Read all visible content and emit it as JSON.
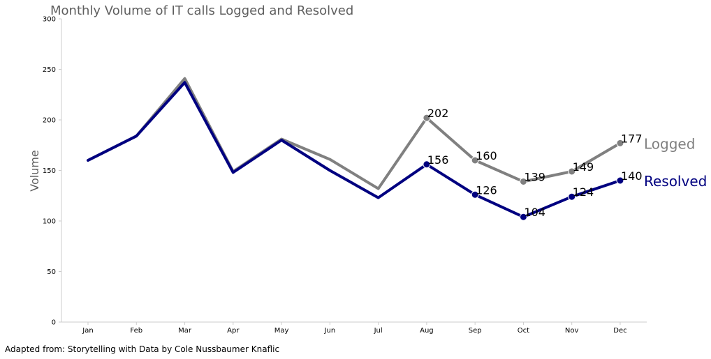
{
  "chart_data": {
    "type": "line",
    "title": "Monthly Volume of IT calls Logged and Resolved",
    "xlabel": "",
    "ylabel": "Volume",
    "categories": [
      "Jan",
      "Feb",
      "Mar",
      "Apr",
      "May",
      "Jun",
      "Jul",
      "Aug",
      "Sep",
      "Oct",
      "Nov",
      "Dec"
    ],
    "ylim": [
      0,
      300
    ],
    "yticks": [
      0,
      50,
      100,
      150,
      200,
      250,
      300
    ],
    "grid": false,
    "legend": "direct labels at right end of lines",
    "series": [
      {
        "name": "Logged",
        "color": "#808080",
        "values": [
          160,
          184,
          241,
          149,
          181,
          161,
          132,
          202,
          160,
          139,
          149,
          177
        ],
        "labeled_points": [
          7,
          8,
          9,
          10,
          11
        ]
      },
      {
        "name": "Resolved",
        "color": "#000080",
        "values": [
          160,
          184,
          237,
          148,
          180,
          150,
          123,
          156,
          126,
          104,
          124,
          140
        ],
        "labeled_points": [
          7,
          8,
          9,
          10,
          11
        ]
      }
    ],
    "footnote": "Adapted from: Storytelling with Data by Cole Nussbaumer Knaflic"
  }
}
